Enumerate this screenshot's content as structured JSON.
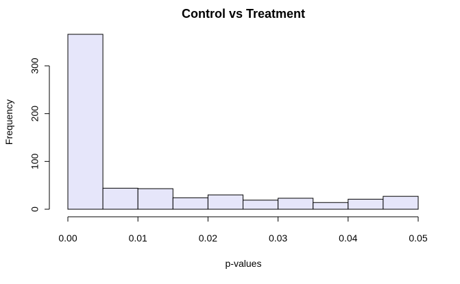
{
  "chart_data": {
    "type": "bar",
    "title": "Control vs Treatment",
    "xlabel": "p-values",
    "ylabel": "Frequency",
    "bin_edges": [
      0.0,
      0.005,
      0.01,
      0.015,
      0.02,
      0.025,
      0.03,
      0.035,
      0.04,
      0.045,
      0.05
    ],
    "values": [
      366,
      44,
      43,
      24,
      30,
      19,
      23,
      14,
      21,
      27
    ],
    "xlim": [
      0.0,
      0.05
    ],
    "ylim": [
      0,
      366
    ],
    "x_ticks": [
      0.0,
      0.01,
      0.02,
      0.03,
      0.04,
      0.05
    ],
    "x_tick_labels": [
      "0.00",
      "0.01",
      "0.02",
      "0.03",
      "0.04",
      "0.05"
    ],
    "y_ticks": [
      0,
      100,
      200,
      300
    ],
    "y_tick_labels": [
      "0",
      "100",
      "200",
      "300"
    ],
    "bar_color": "#e6e6fa",
    "grid": false,
    "legend": "none"
  }
}
